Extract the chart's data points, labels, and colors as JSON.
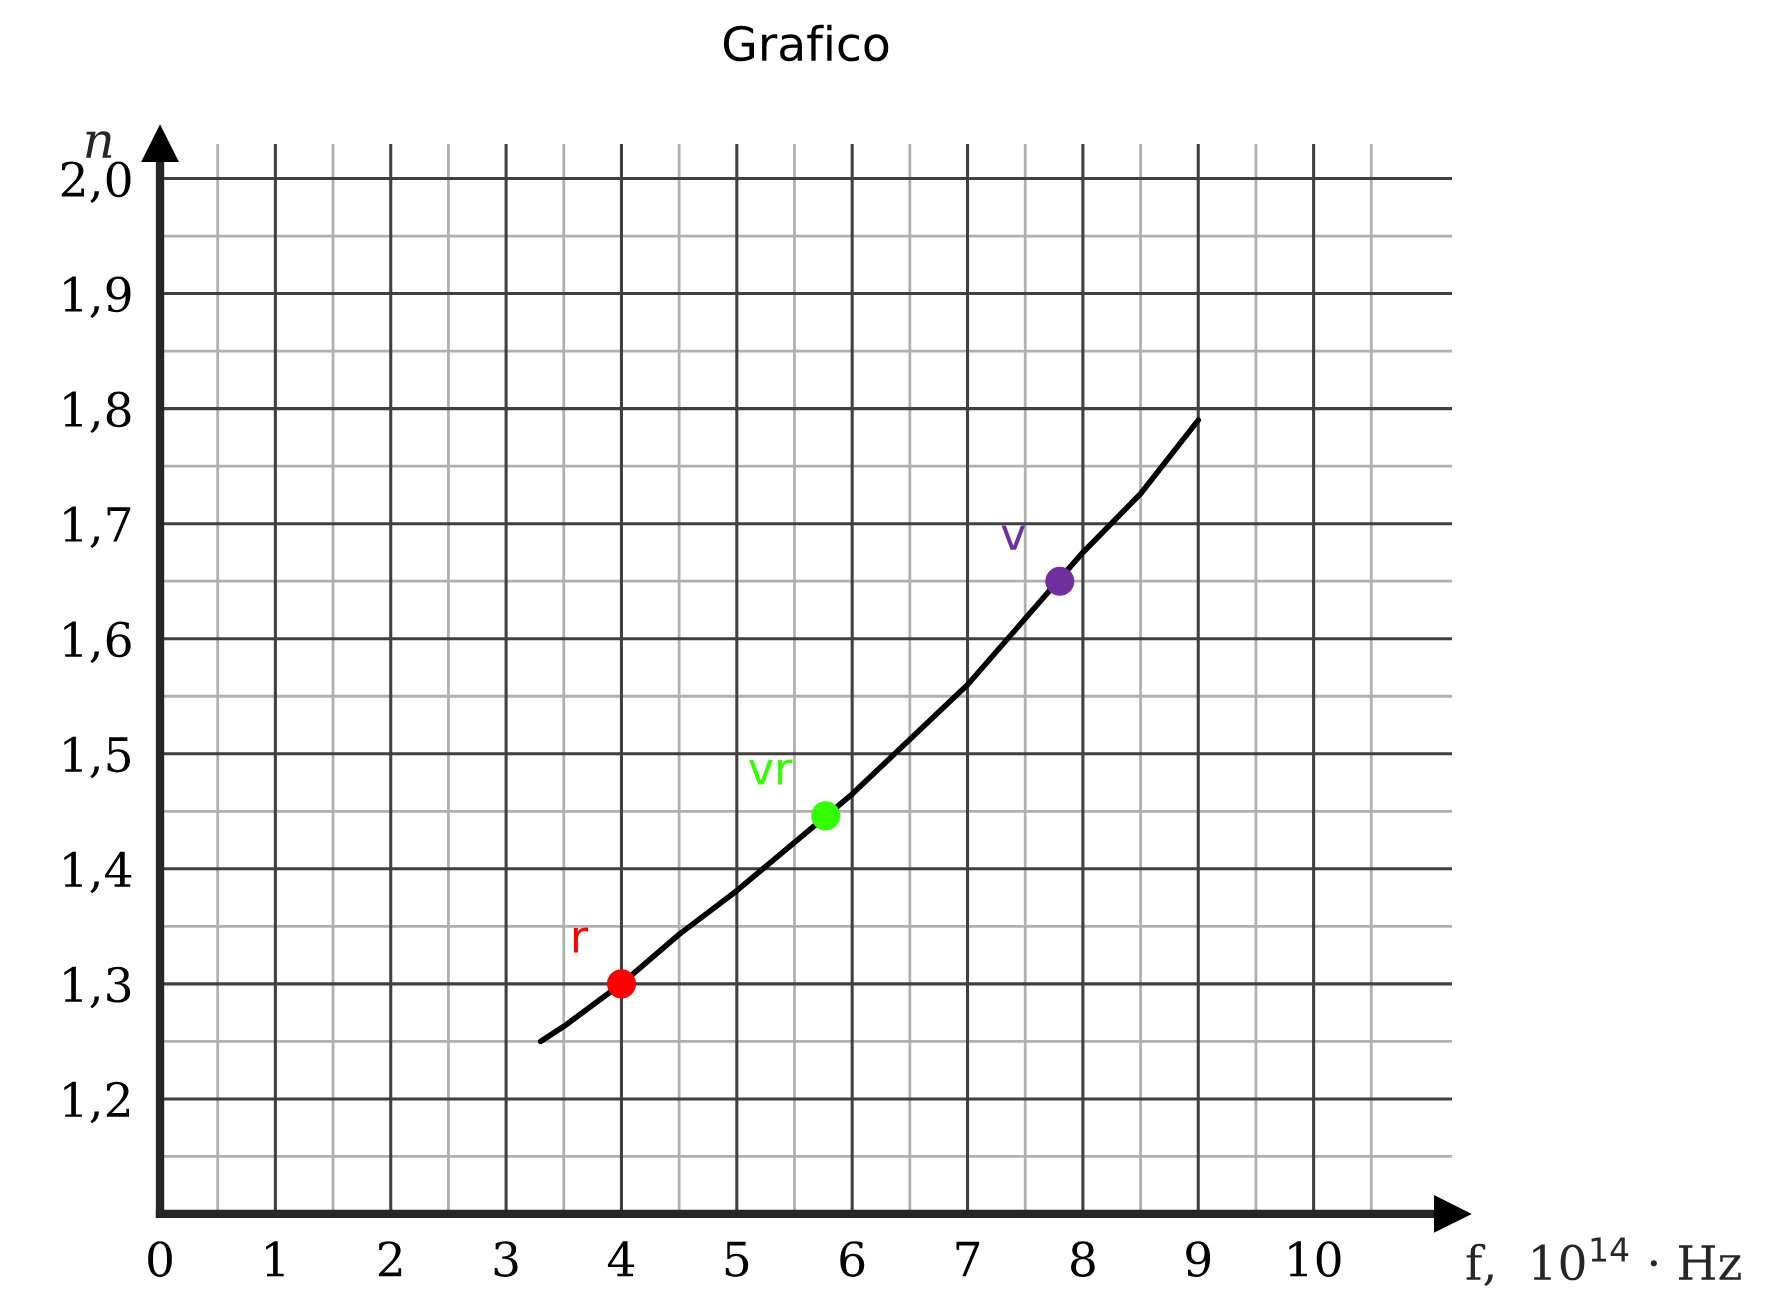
{
  "chart_data": {
    "type": "line",
    "title": "Grafico",
    "xlabel": "f,  10$^{14}$ · Hz",
    "ylabel": "n",
    "xlim": [
      0,
      11.2
    ],
    "ylim": [
      1.1,
      2.03
    ],
    "xticks": [
      0,
      1,
      2,
      3,
      4,
      5,
      6,
      7,
      8,
      9,
      10
    ],
    "yticks": [
      {
        "value": 1.2,
        "label": "1,2"
      },
      {
        "value": 1.3,
        "label": "1,3"
      },
      {
        "value": 1.4,
        "label": "1,4"
      },
      {
        "value": 1.5,
        "label": "1,5"
      },
      {
        "value": 1.6,
        "label": "1,6"
      },
      {
        "value": 1.7,
        "label": "1,7"
      },
      {
        "value": 1.8,
        "label": "1,8"
      },
      {
        "value": 1.9,
        "label": "1,9"
      },
      {
        "value": 2.0,
        "label": "2,0"
      }
    ],
    "grid": true,
    "series": [
      {
        "color": "#000000",
        "marker": "none",
        "x": [
          3.3,
          3.5,
          4,
          4.5,
          5,
          6,
          7,
          8,
          8.5,
          9
        ],
        "values": [
          1.25,
          1.263,
          1.3,
          1.343,
          1.381,
          1.465,
          1.56,
          1.675,
          1.726,
          1.79
        ]
      },
      {
        "type": "scatter",
        "name": "r",
        "color": "#ff0000",
        "marker": "circle",
        "x": [
          4.0
        ],
        "values": [
          1.3
        ]
      },
      {
        "type": "scatter",
        "name": "vr",
        "color": "#33ff00",
        "marker": "circle",
        "x": [
          5.77
        ],
        "values": [
          1.446
        ]
      },
      {
        "type": "scatter",
        "name": "v",
        "color": "#7030a0",
        "marker": "circle",
        "x": [
          7.8
        ],
        "values": [
          1.65
        ]
      }
    ]
  }
}
